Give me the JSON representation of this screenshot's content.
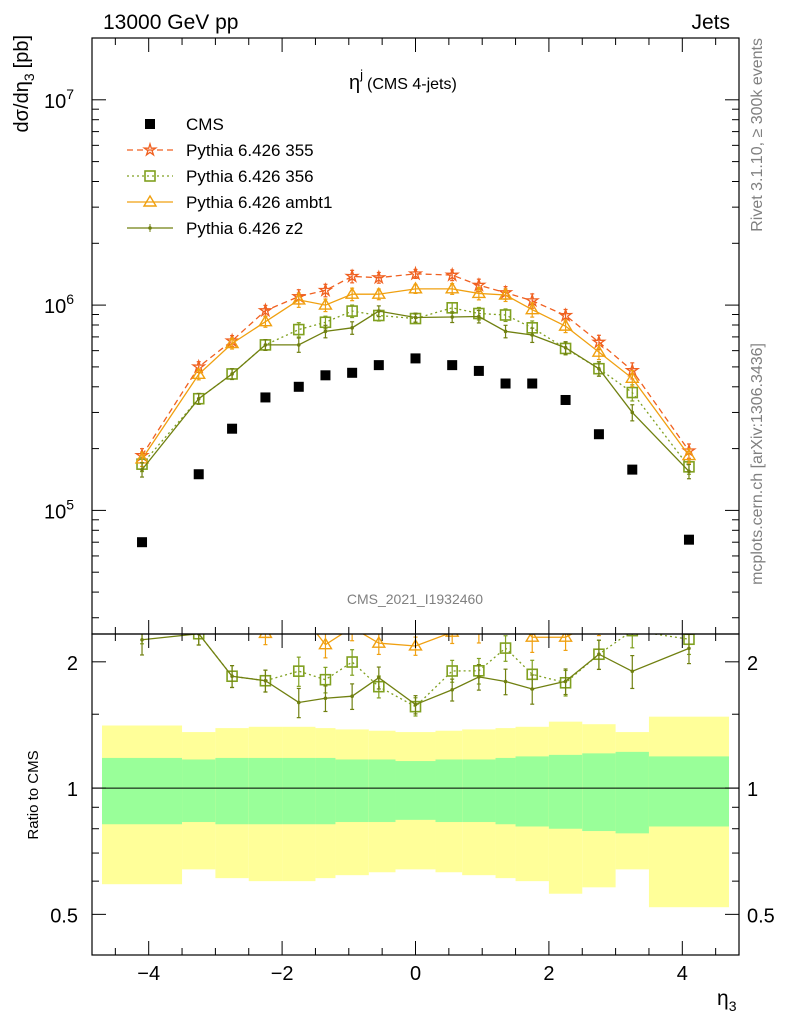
{
  "header": {
    "left": "13000 GeV pp",
    "right": "Jets",
    "side_top": "Rivet 3.1.10, ≥ 300k events",
    "side_bottom": "mcplots.cern.ch [arXiv:1306.3436]",
    "watermark": "CMS_2021_I1932460"
  },
  "main_panel": {
    "title_main": "η",
    "title_sup": "j",
    "title_sub": "(CMS 4-jets)",
    "ylabel_main": "dσ/dη",
    "ylabel_sub": "3",
    "ylabel_unit": "[pb]",
    "yticks": [
      {
        "value": 100000,
        "mant": "10",
        "exp": "5"
      },
      {
        "value": 1000000,
        "mant": "10",
        "exp": "6"
      },
      {
        "value": 10000000,
        "mant": "10",
        "exp": "7"
      }
    ]
  },
  "ratio_panel": {
    "ylabel": "Ratio to CMS",
    "yticks": [
      "0.5",
      "1",
      "2"
    ]
  },
  "xaxis": {
    "label_main": "η",
    "label_sub": "3",
    "ticks": [
      "−4",
      "−2",
      "0",
      "2",
      "4"
    ]
  },
  "legend": [
    "CMS",
    "Pythia 6.426 355",
    "Pythia 6.426 356",
    "Pythia 6.426 ambt1",
    "Pythia 6.426 z2"
  ],
  "colors": {
    "data": "#000000",
    "p355": "#f06020",
    "p356": "#80a020",
    "ambt1": "#f0a010",
    "z2": "#708010",
    "band_inner": "#99ff99",
    "band_outer": "#ffff99"
  },
  "chart_data": {
    "type": "line",
    "x_scale": "linear",
    "y_scale": "log",
    "xlim": [
      -4.85,
      4.85
    ],
    "ylim": [
      25000,
      20000000
    ],
    "ratio_ylim": [
      0.4,
      2.33
    ],
    "ratio_scale": "log",
    "x": [
      -4.1,
      -3.25,
      -2.75,
      -2.25,
      -1.75,
      -1.35,
      -0.95,
      -0.55,
      0.0,
      0.55,
      0.95,
      1.35,
      1.75,
      2.25,
      2.75,
      3.25,
      4.1
    ],
    "bins": [
      [
        -4.7,
        -3.5
      ],
      [
        -3.5,
        -3.0
      ],
      [
        -3.0,
        -2.5
      ],
      [
        -2.5,
        -2.0
      ],
      [
        -2.0,
        -1.5
      ],
      [
        -1.5,
        -1.2
      ],
      [
        -1.2,
        -0.7
      ],
      [
        -0.7,
        -0.3
      ],
      [
        -0.3,
        0.3
      ],
      [
        0.3,
        0.7
      ],
      [
        0.7,
        1.2
      ],
      [
        1.2,
        1.5
      ],
      [
        1.5,
        2.0
      ],
      [
        2.0,
        2.5
      ],
      [
        2.5,
        3.0
      ],
      [
        3.0,
        3.5
      ],
      [
        3.5,
        4.7
      ]
    ],
    "band_inner_rel": [
      0.18,
      0.17,
      0.18,
      0.18,
      0.18,
      0.18,
      0.17,
      0.17,
      0.16,
      0.17,
      0.17,
      0.18,
      0.19,
      0.2,
      0.21,
      0.22,
      0.19
    ],
    "band_outer_rel": [
      0.41,
      0.36,
      0.39,
      0.4,
      0.4,
      0.39,
      0.38,
      0.37,
      0.36,
      0.37,
      0.38,
      0.39,
      0.4,
      0.44,
      0.42,
      0.36,
      0.48
    ],
    "series": [
      {
        "name": "CMS",
        "marker": "square-filled",
        "values": [
          70000,
          150000,
          250000,
          355000,
          400000,
          455000,
          468000,
          510000,
          550000,
          510000,
          478000,
          415000,
          415000,
          345000,
          235000,
          158000,
          72000
        ]
      },
      {
        "name": "Pythia 6.426 355",
        "marker": "star",
        "dash": "dashed",
        "values": [
          185000,
          500000,
          670000,
          940000,
          1100000,
          1180000,
          1380000,
          1360000,
          1420000,
          1400000,
          1250000,
          1150000,
          1050000,
          890000,
          660000,
          480000,
          195000
        ]
      },
      {
        "name": "Pythia 6.426 356",
        "marker": "square-open",
        "dash": "dotted",
        "values": [
          168000,
          350000,
          462000,
          640000,
          760000,
          825000,
          935000,
          890000,
          860000,
          970000,
          910000,
          895000,
          775000,
          615000,
          490000,
          375000,
          163000
        ]
      },
      {
        "name": "Pythia 6.426 ambt1",
        "marker": "triangle-open",
        "dash": "solid",
        "values": [
          178000,
          460000,
          650000,
          830000,
          1060000,
          1000000,
          1130000,
          1130000,
          1200000,
          1200000,
          1140000,
          1120000,
          950000,
          790000,
          590000,
          440000,
          185000
        ]
      },
      {
        "name": "Pythia 6.426 z2",
        "marker": "dot",
        "dash": "solid",
        "values": [
          158000,
          350000,
          462000,
          640000,
          640000,
          745000,
          775000,
          935000,
          870000,
          875000,
          880000,
          745000,
          715000,
          620000,
          490000,
          300000,
          155000
        ]
      }
    ],
    "errors_rel": [
      0.08,
      0.06,
      0.06,
      0.06,
      0.08,
      0.07,
      0.07,
      0.06,
      0.05,
      0.06,
      0.07,
      0.07,
      0.08,
      0.07,
      0.08,
      0.09,
      0.08
    ]
  }
}
